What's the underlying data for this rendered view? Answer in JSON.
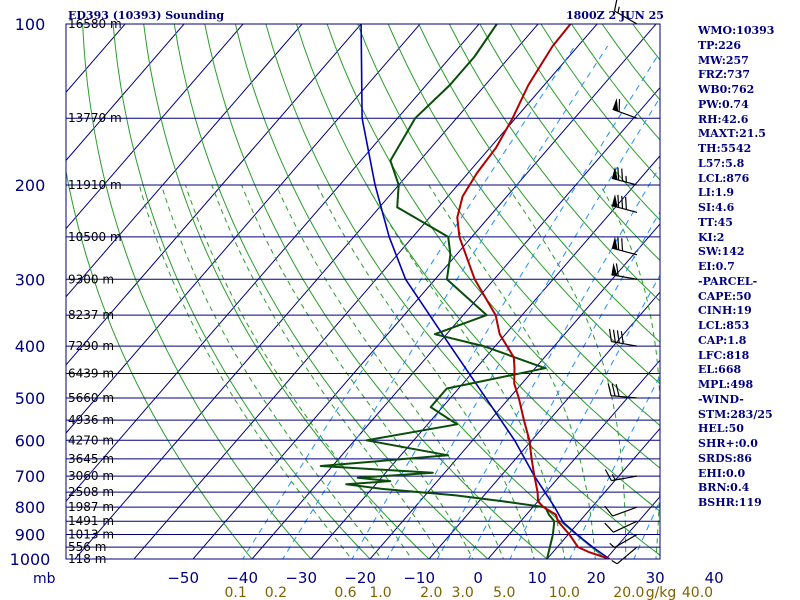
{
  "header": {
    "station": "ED393 (10393) Sounding",
    "time": "1800Z  2 JUN 25"
  },
  "indices": [
    "WMO:10393",
    "TP:226",
    "MW:257",
    "FRZ:737",
    "WB0:762",
    "PW:0.74",
    "RH:42.6",
    "MAXT:21.5",
    "TH:5542",
    "L57:5.8",
    "LCL:876",
    "LI:1.9",
    "SI:4.6",
    "TT:45",
    "KI:2",
    "SW:142",
    "EI:0.7",
    "-PARCEL-",
    "CAPE:50",
    "CINH:19",
    "LCL:853",
    "CAP:1.8",
    "LFC:818",
    "EL:668",
    "MPL:498",
    "-WIND-",
    "STM:283/25",
    "HEL:50",
    "SHR+:0.0",
    "SRDS:86",
    "EHI:0.0",
    "BRN:0.4",
    "BSHR:119"
  ],
  "colors": {
    "isobar": "#00007f",
    "isotherm": "#00007f",
    "dry_adiabat": "#2a9d2a",
    "moist_adiabat": "#2a9d2a",
    "mixing_ratio": "#1e90ff",
    "temperature": "#b00000",
    "dewpoint": "#0a4d0a",
    "parcel": "#0000b0",
    "text": "#00007f",
    "mixing_label": "#806000"
  },
  "chart_data": {
    "type": "skew-t",
    "pressure_ticks": [
      100,
      200,
      300,
      400,
      500,
      600,
      700,
      800,
      900,
      1000
    ],
    "pressure_axis_label": "mb",
    "temperature_ticks": [
      -50,
      -40,
      -30,
      -20,
      -10,
      0,
      10,
      20,
      30,
      40
    ],
    "mixing_ratio_ticks": [
      0.1,
      0.2,
      0.6,
      1.0,
      2.0,
      3.0,
      5.0,
      10.0,
      20.0,
      40.0
    ],
    "mixing_ratio_unit": "g/kg",
    "height_levels": [
      {
        "p": 100,
        "label": "16580 m"
      },
      {
        "p": 150,
        "label": "13770 m"
      },
      {
        "p": 200,
        "label": "11910 m"
      },
      {
        "p": 250,
        "label": "10500 m"
      },
      {
        "p": 300,
        "label": "9300 m"
      },
      {
        "p": 350,
        "label": "8237 m"
      },
      {
        "p": 400,
        "label": "7290 m"
      },
      {
        "p": 450,
        "label": "6439 m"
      },
      {
        "p": 500,
        "label": "5660 m"
      },
      {
        "p": 550,
        "label": "4936 m"
      },
      {
        "p": 600,
        "label": "4270 m"
      },
      {
        "p": 650,
        "label": "3645 m"
      },
      {
        "p": 700,
        "label": "3060 m"
      },
      {
        "p": 750,
        "label": "2508 m"
      },
      {
        "p": 800,
        "label": "1987 m"
      },
      {
        "p": 850,
        "label": "1491 m"
      },
      {
        "p": 900,
        "label": "1013 m"
      },
      {
        "p": 950,
        "label": "556 m"
      },
      {
        "p": 1000,
        "label": "118 m"
      }
    ],
    "temperature": [
      [
        1000,
        20.6
      ],
      [
        970,
        16.0
      ],
      [
        950,
        13.5
      ],
      [
        900,
        10.2
      ],
      [
        850,
        6.3
      ],
      [
        826,
        5.0
      ],
      [
        800,
        1.8
      ],
      [
        780,
        0.0
      ],
      [
        750,
        -1.4
      ],
      [
        700,
        -4.3
      ],
      [
        650,
        -7.3
      ],
      [
        600,
        -10.4
      ],
      [
        550,
        -14.3
      ],
      [
        500,
        -18.4
      ],
      [
        470,
        -21.3
      ],
      [
        440,
        -23.5
      ],
      [
        420,
        -25.2
      ],
      [
        380,
        -31.0
      ],
      [
        350,
        -34.5
      ],
      [
        300,
        -43.3
      ],
      [
        250,
        -52.1
      ],
      [
        230,
        -55.3
      ],
      [
        210,
        -57.5
      ],
      [
        190,
        -58.5
      ],
      [
        170,
        -59.0
      ],
      [
        150,
        -60.5
      ],
      [
        130,
        -62.7
      ],
      [
        110,
        -64.3
      ],
      [
        100,
        -64.5
      ]
    ],
    "dewpoint": [
      [
        1000,
        10.0
      ],
      [
        900,
        7.4
      ],
      [
        850,
        5.7
      ],
      [
        826,
        3.8
      ],
      [
        800,
        2.1
      ],
      [
        780,
        -6.0
      ],
      [
        760,
        -15.0
      ],
      [
        740,
        -28.0
      ],
      [
        725,
        -35.0
      ],
      [
        715,
        -28.0
      ],
      [
        705,
        -34.0
      ],
      [
        690,
        -22.0
      ],
      [
        670,
        -42.0
      ],
      [
        640,
        -22.0
      ],
      [
        600,
        -38.0
      ],
      [
        560,
        -25.0
      ],
      [
        520,
        -32.0
      ],
      [
        480,
        -32.0
      ],
      [
        440,
        -18.3
      ],
      [
        400,
        -32.0
      ],
      [
        380,
        -42.0
      ],
      [
        350,
        -36.0
      ],
      [
        320,
        -43.0
      ],
      [
        300,
        -48.0
      ],
      [
        270,
        -51.0
      ],
      [
        250,
        -54.0
      ],
      [
        220,
        -67.0
      ],
      [
        200,
        -70.0
      ],
      [
        180,
        -75.0
      ],
      [
        150,
        -77.0
      ],
      [
        130,
        -76.0
      ],
      [
        115,
        -76.0
      ],
      [
        100,
        -77.0
      ]
    ],
    "parcel": [
      [
        1000,
        20.6
      ],
      [
        950,
        16.0
      ],
      [
        900,
        11.5
      ],
      [
        853,
        7.3
      ],
      [
        800,
        3.7
      ],
      [
        700,
        -4.3
      ],
      [
        600,
        -12.9
      ],
      [
        500,
        -24.0
      ],
      [
        400,
        -37.6
      ],
      [
        300,
        -55.0
      ],
      [
        250,
        -64.0
      ],
      [
        200,
        -74.0
      ],
      [
        150,
        -86.0
      ],
      [
        100,
        -100.0
      ]
    ],
    "wind_barbs": [
      {
        "p": 100,
        "dir": 300,
        "spd": 15
      },
      {
        "p": 150,
        "dir": 290,
        "spd": 60
      },
      {
        "p": 200,
        "dir": 285,
        "spd": 75
      },
      {
        "p": 225,
        "dir": 285,
        "spd": 80
      },
      {
        "p": 270,
        "dir": 285,
        "spd": 70
      },
      {
        "p": 300,
        "dir": 280,
        "spd": 60
      },
      {
        "p": 400,
        "dir": 280,
        "spd": 40
      },
      {
        "p": 500,
        "dir": 275,
        "spd": 30
      },
      {
        "p": 700,
        "dir": 260,
        "spd": 15
      },
      {
        "p": 800,
        "dir": 250,
        "spd": 10
      },
      {
        "p": 850,
        "dir": 245,
        "spd": 10
      },
      {
        "p": 900,
        "dir": 240,
        "spd": 5
      },
      {
        "p": 950,
        "dir": 230,
        "spd": 5
      }
    ]
  }
}
